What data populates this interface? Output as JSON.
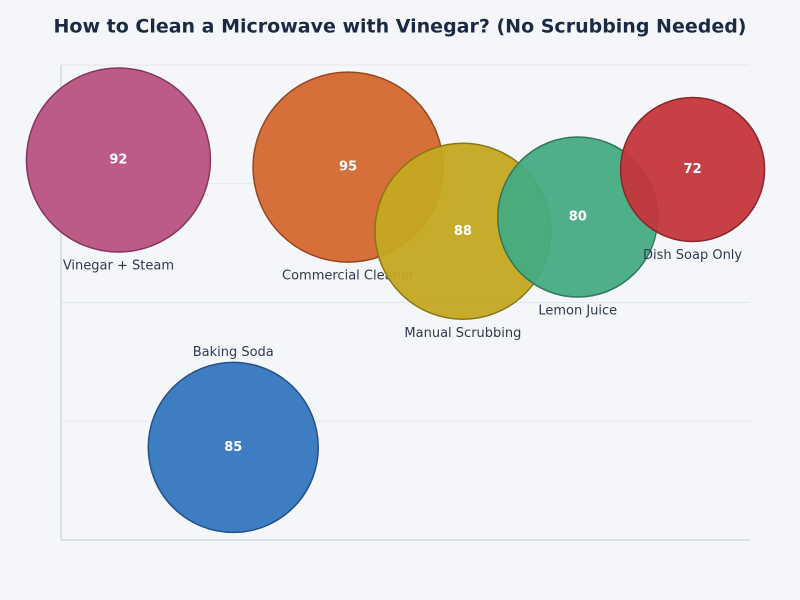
{
  "chart_data": {
    "type": "bubble",
    "title": "How to Clean a Microwave with Vinegar? (No Scrubbing Needed)",
    "categories": [
      "Vinegar + Steam",
      "Baking Soda",
      "Commercial Cleaner",
      "Manual Scrubbing",
      "Lemon Juice",
      "Dish Soap Only"
    ],
    "x": [
      0.5,
      1.5,
      2.5,
      3.5,
      4.5,
      5.5
    ],
    "y": [
      80,
      19.5,
      78.5,
      65,
      68,
      78
    ],
    "sizes": [
      92,
      85,
      95,
      88,
      80,
      72
    ],
    "colors": [
      "#b85282",
      "#3476bf",
      "#d4672e",
      "#c4a820",
      "#46ab82",
      "#c4363c"
    ],
    "label_positions": [
      "below",
      "above",
      "below",
      "below",
      "below",
      "below"
    ],
    "xlim": [
      0,
      6
    ],
    "ylim": [
      0,
      100
    ],
    "yticks": [
      0,
      25,
      50,
      75,
      100
    ],
    "grid": true,
    "tick_labels": false
  }
}
